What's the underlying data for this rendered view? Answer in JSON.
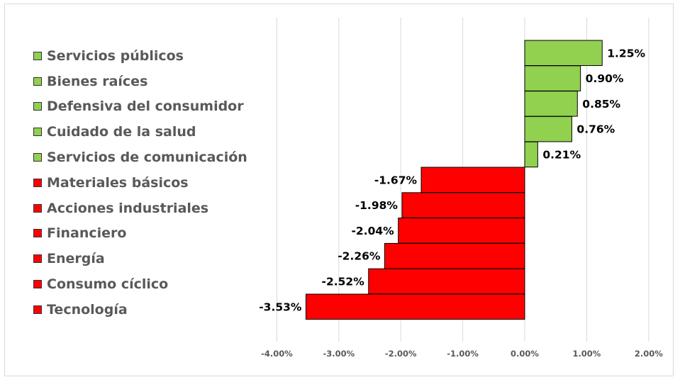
{
  "colors": {
    "positive": "#92d050",
    "negative": "#ff0000",
    "grid": "#d9d9d9",
    "text": "#595959"
  },
  "chart_data": {
    "type": "bar",
    "orientation": "horizontal",
    "categories": [
      "Servicios públicos",
      "Bienes raíces",
      "Defensiva del consumidor",
      "Cuidado de la salud",
      "Servicios de comunicación",
      "Materiales básicos",
      "Acciones industriales",
      "Financiero",
      "Energía",
      "Consumo cíclico",
      "Tecnología"
    ],
    "values": [
      1.25,
      0.9,
      0.85,
      0.76,
      0.21,
      -1.67,
      -1.98,
      -2.04,
      -2.26,
      -2.52,
      -3.53
    ],
    "value_labels": [
      "1.25%",
      "0.90%",
      "0.85%",
      "0.76%",
      "0.21%",
      "-1.67%",
      "-1.98%",
      "-2.04%",
      "-2.26%",
      "-2.52%",
      "-3.53%"
    ],
    "xlim": [
      -4,
      2
    ],
    "xticks": [
      -4,
      -3,
      -2,
      -1,
      0,
      1,
      2
    ],
    "xtick_labels": [
      "-4.00%",
      "-3.00%",
      "-2.00%",
      "-1.00%",
      "0.00%",
      "1.00%",
      "2.00%"
    ],
    "grid": true,
    "legend_position": "left",
    "title": "",
    "xlabel": "",
    "ylabel": ""
  }
}
